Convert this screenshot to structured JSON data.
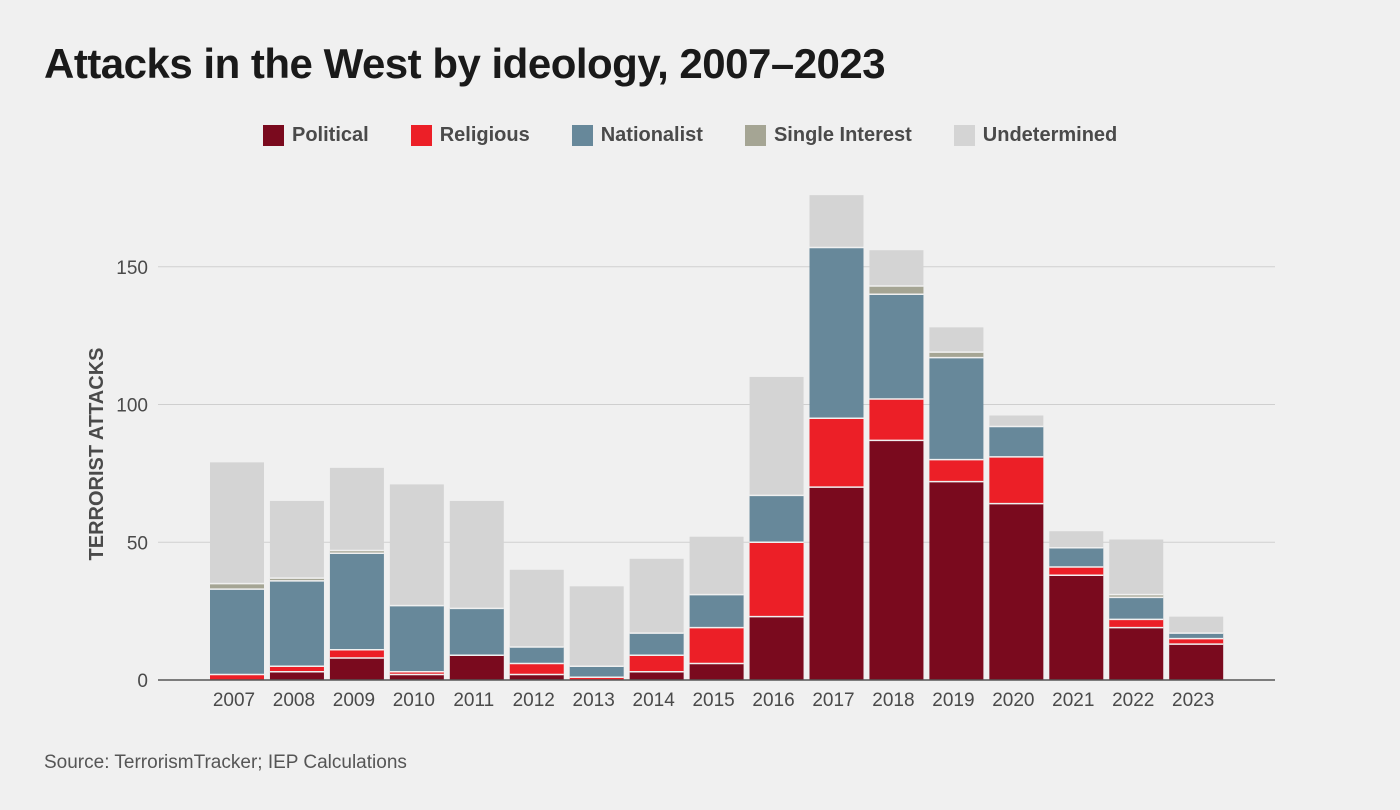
{
  "title": "Attacks in the West by ideology, 2007–2023",
  "source": "Source: TerrorismTracker; IEP Calculations",
  "chart_data": {
    "type": "bar",
    "stacked": true,
    "title": "Attacks in the West by ideology, 2007–2023",
    "xlabel": "",
    "ylabel": "TERRORIST ATTACKS",
    "ylim": [
      0,
      175
    ],
    "yticks": [
      0,
      50,
      100,
      150
    ],
    "grid": true,
    "legend_position": "top",
    "categories": [
      "2007",
      "2008",
      "2009",
      "2010",
      "2011",
      "2012",
      "2013",
      "2014",
      "2015",
      "2016",
      "2017",
      "2018",
      "2019",
      "2020",
      "2021",
      "2022",
      "2023"
    ],
    "series": [
      {
        "name": "Political",
        "color": "#7a0a1e",
        "values": [
          0,
          3,
          8,
          2,
          9,
          2,
          0,
          3,
          6,
          23,
          70,
          87,
          72,
          64,
          38,
          19,
          13
        ]
      },
      {
        "name": "Religious",
        "color": "#ec1f27",
        "values": [
          2,
          2,
          3,
          1,
          0,
          4,
          1,
          6,
          13,
          27,
          25,
          15,
          8,
          17,
          3,
          3,
          2
        ]
      },
      {
        "name": "Nationalist",
        "color": "#67889a",
        "values": [
          31,
          31,
          35,
          24,
          17,
          6,
          4,
          8,
          12,
          17,
          62,
          38,
          37,
          11,
          7,
          8,
          2
        ]
      },
      {
        "name": "Single Interest",
        "color": "#a5a594",
        "values": [
          2,
          1,
          1,
          0,
          0,
          0,
          0,
          0,
          0,
          0,
          0,
          3,
          2,
          0,
          0,
          1,
          0
        ]
      },
      {
        "name": "Undetermined",
        "color": "#d4d4d4",
        "values": [
          44,
          28,
          30,
          44,
          39,
          28,
          29,
          27,
          21,
          43,
          19,
          13,
          9,
          4,
          6,
          20,
          6
        ]
      }
    ]
  }
}
